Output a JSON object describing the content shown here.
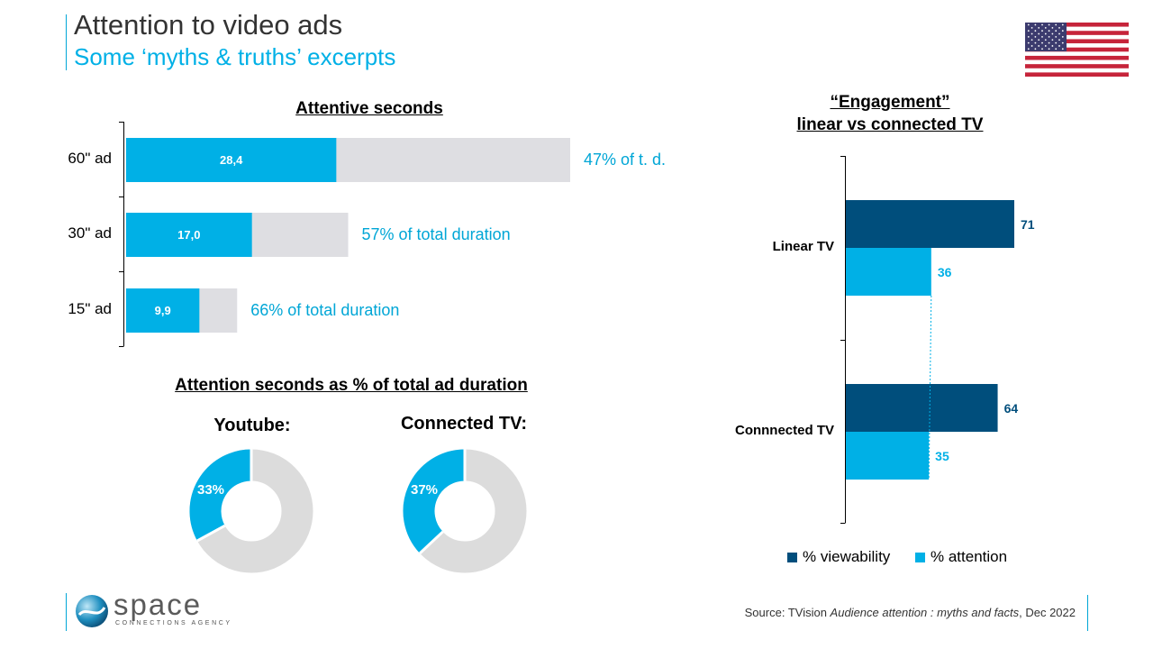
{
  "header": {
    "title": "Attention to video ads",
    "subtitle": "Some ‘myths & truths’ excerpts"
  },
  "colors": {
    "cyan": "#00b0e6",
    "navy": "#004e7c",
    "grey": "#dedee2",
    "donut_grey": "#dcdcdc"
  },
  "flag_icon": "us-flag-icon",
  "chart_data": [
    {
      "type": "bar",
      "title": "Attentive seconds",
      "orientation": "horizontal",
      "stacked": true,
      "categories": [
        "60\" ad",
        "30\" ad",
        "15\" ad"
      ],
      "series": [
        {
          "values": [
            28.4,
            17.0,
            9.9
          ]
        },
        {
          "values": [
            31.6,
            13.0,
            5.1
          ]
        }
      ],
      "value_labels": [
        "28,4",
        "17,0",
        "9,9"
      ],
      "annotations": [
        "47% of t. d.",
        "57% of total duration",
        "66% of total duration"
      ],
      "totals": [
        60,
        30,
        15
      ],
      "xlim": [
        0,
        120
      ]
    },
    {
      "type": "pie",
      "title": "Attention seconds as % of total ad duration",
      "charts": [
        {
          "label": "Youtube:",
          "value": 33,
          "value_label": "33%"
        },
        {
          "label": "Connected TV:",
          "value": 37,
          "value_label": "37%"
        }
      ]
    },
    {
      "type": "bar",
      "orientation": "horizontal",
      "title_lines": [
        "“Engagement”",
        "linear vs connected TV"
      ],
      "categories": [
        "Linear TV",
        "Connnected TV"
      ],
      "series": [
        {
          "name": "% viewability",
          "values": [
            71,
            64
          ]
        },
        {
          "name": "% attention",
          "values": [
            36,
            35
          ]
        }
      ],
      "xlim": [
        0,
        100
      ],
      "legend": "bottom"
    }
  ],
  "logo": {
    "name": "space",
    "tagline": "CONNECTIONS AGENCY"
  },
  "source": {
    "prefix": "Source: TVision ",
    "italic": "Audience attention : myths and facts",
    "suffix": ", Dec 2022"
  }
}
